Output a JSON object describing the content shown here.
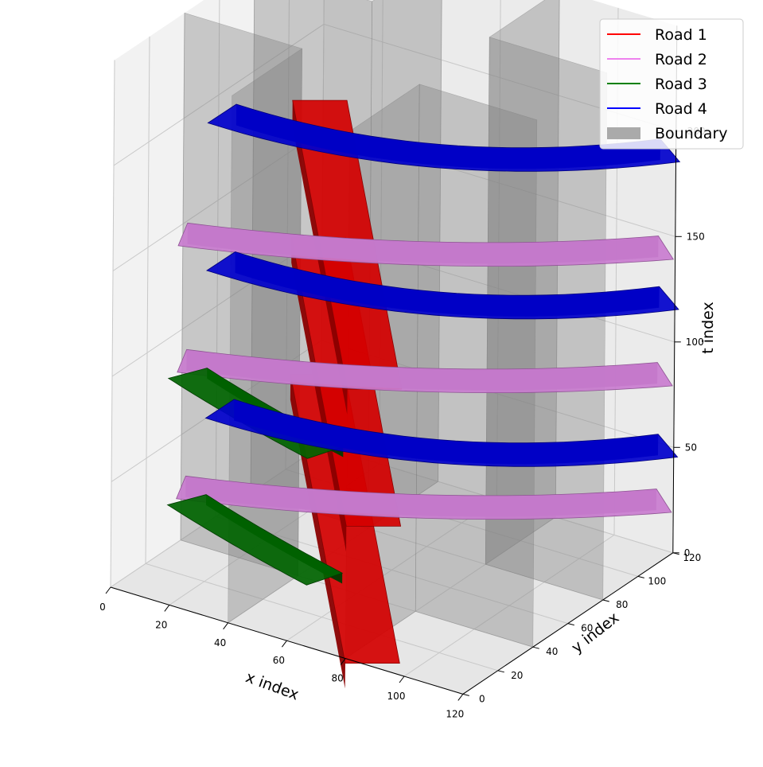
{
  "chart_data": {
    "type": "voxel-3d",
    "axes": {
      "x": {
        "label": "x index",
        "ticks": [
          0,
          20,
          40,
          60,
          80,
          100,
          120
        ],
        "range": [
          0,
          120
        ]
      },
      "y": {
        "label": "y index",
        "ticks": [
          0,
          20,
          40,
          60,
          80,
          100,
          120
        ],
        "range": [
          0,
          120
        ]
      },
      "t": {
        "label": "t index",
        "ticks": [
          0,
          50,
          100,
          150,
          200
        ],
        "range": [
          0,
          250
        ]
      }
    },
    "grid": true,
    "legend_position": "top-right",
    "legend": [
      {
        "name": "Road 1",
        "color": "#ff0000",
        "kind": "line"
      },
      {
        "name": "Road 2",
        "color": "#ee82ee",
        "kind": "line"
      },
      {
        "name": "Road 3",
        "color": "#008000",
        "kind": "line"
      },
      {
        "name": "Road 4",
        "color": "#0000ff",
        "kind": "line"
      },
      {
        "name": "Boundary",
        "color": "#aaaaaa",
        "kind": "patch"
      }
    ],
    "series": [
      {
        "name": "Road 1",
        "color": "#d40000",
        "path": "diagonal from (x 85, y 0) toward (x 0, y 120)",
        "t_layers": [
          [
            0,
            35
          ],
          [
            65,
            100
          ],
          [
            130,
            165
          ]
        ]
      },
      {
        "name": "Road 2",
        "color": "#c97ccf",
        "path": "from (x 0, y 40) curving to (x 120, y 120)",
        "t_layers": [
          [
            15,
            25
          ],
          [
            75,
            85
          ],
          [
            135,
            145
          ]
        ]
      },
      {
        "name": "Road 3",
        "color": "#006400",
        "path": "from (x 0, y 40) to (x 60, y 20)",
        "t_layers": [
          [
            15,
            20
          ],
          [
            75,
            80
          ]
        ]
      },
      {
        "name": "Road 4",
        "color": "#0000cc",
        "path": "from (x 0, y 60) curving to (x 120, y 120)",
        "t_layers": [
          [
            40,
            50
          ],
          [
            110,
            120
          ],
          [
            180,
            190
          ]
        ]
      },
      {
        "name": "Boundary",
        "color": "#8c8c8c",
        "kind": "vertical planes",
        "planes": [
          "x 40, y 0 to 40",
          "x 40, y 80 to 120",
          "x 80, y 0 to 40",
          "x 80, y 80 to 120",
          "y 40, x 0 to 40",
          "y 80, x 0 to 40",
          "y 40, x 80 to 120",
          "y 80, x 80 to 120"
        ]
      }
    ]
  }
}
